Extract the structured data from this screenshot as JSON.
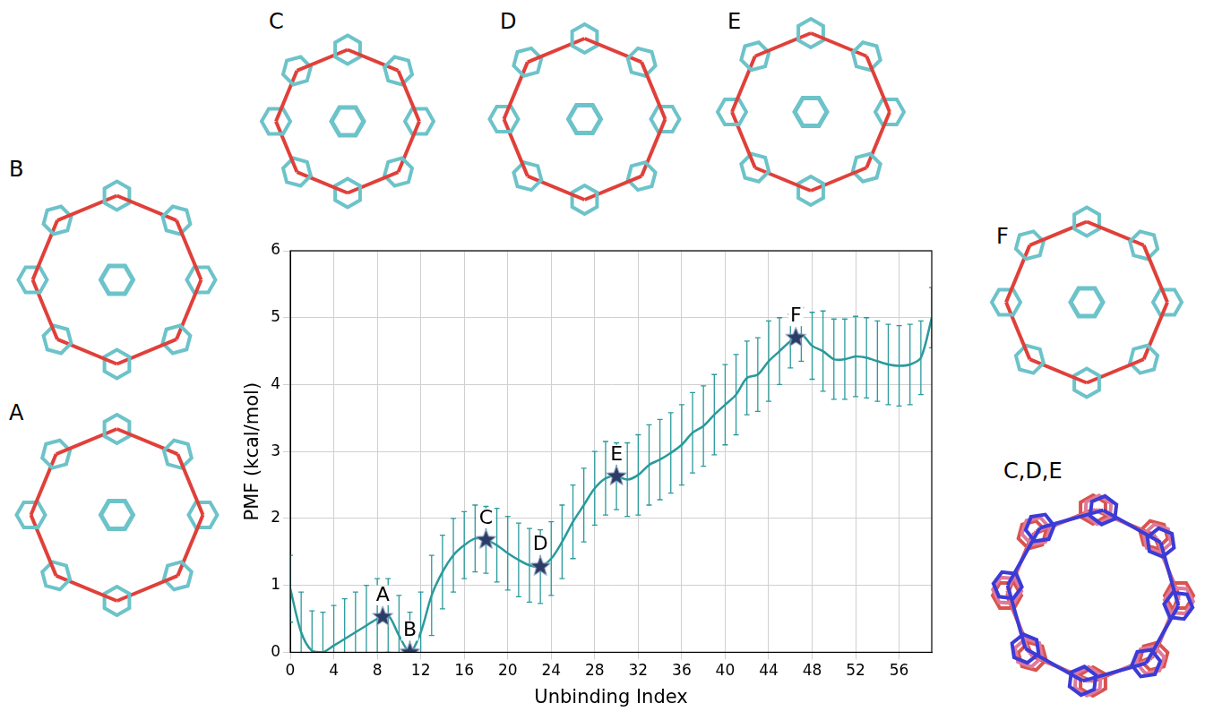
{
  "chart_data": {
    "type": "line",
    "x_label": "Unbinding Index",
    "y_label": "PMF (kcal/mol)",
    "color": "#2a9a9c",
    "x": [
      0,
      1,
      2,
      3,
      4,
      5,
      6,
      7,
      8,
      9,
      10,
      11,
      12,
      13,
      14,
      15,
      16,
      17,
      18,
      19,
      20,
      21,
      22,
      23,
      24,
      25,
      26,
      27,
      28,
      29,
      30,
      31,
      32,
      33,
      34,
      35,
      36,
      37,
      38,
      39,
      40,
      41,
      42,
      43,
      44,
      45,
      46,
      47,
      48,
      49,
      50,
      51,
      52,
      53,
      54,
      55,
      56,
      57,
      58,
      59
    ],
    "values": [
      0.95,
      0.3,
      0.02,
      0.0,
      0.1,
      0.2,
      0.3,
      0.4,
      0.5,
      0.55,
      0.25,
      0.0,
      0.3,
      0.85,
      1.2,
      1.45,
      1.6,
      1.7,
      1.68,
      1.6,
      1.48,
      1.38,
      1.3,
      1.28,
      1.4,
      1.65,
      1.95,
      2.2,
      2.45,
      2.6,
      2.63,
      2.58,
      2.65,
      2.8,
      2.88,
      2.98,
      3.1,
      3.28,
      3.38,
      3.55,
      3.7,
      3.85,
      4.1,
      4.15,
      4.35,
      4.5,
      4.65,
      4.75,
      4.58,
      4.5,
      4.38,
      4.38,
      4.42,
      4.4,
      4.35,
      4.3,
      4.28,
      4.3,
      4.4,
      5.0
    ],
    "errors": [
      0.5,
      0.6,
      0.6,
      0.6,
      0.6,
      0.6,
      0.6,
      0.6,
      0.6,
      0.55,
      0.6,
      0.6,
      0.6,
      0.6,
      0.55,
      0.55,
      0.5,
      0.5,
      0.5,
      0.55,
      0.55,
      0.55,
      0.55,
      0.55,
      0.55,
      0.55,
      0.55,
      0.55,
      0.55,
      0.55,
      0.5,
      0.55,
      0.6,
      0.6,
      0.6,
      0.6,
      0.6,
      0.6,
      0.6,
      0.6,
      0.6,
      0.6,
      0.55,
      0.55,
      0.6,
      0.5,
      0.4,
      0.4,
      0.5,
      0.6,
      0.6,
      0.6,
      0.6,
      0.6,
      0.6,
      0.6,
      0.6,
      0.6,
      0.55,
      0.45
    ],
    "markers": [
      {
        "label": "A",
        "x": 8.5,
        "y": 0.53
      },
      {
        "label": "B",
        "x": 11,
        "y": 0.0
      },
      {
        "label": "C",
        "x": 18,
        "y": 1.68
      },
      {
        "label": "D",
        "x": 23,
        "y": 1.28
      },
      {
        "label": "E",
        "x": 30,
        "y": 2.63
      },
      {
        "label": "F",
        "x": 46.5,
        "y": 4.7
      }
    ],
    "marker": "star",
    "marker_color": "#2b3d66",
    "xlim": [
      0,
      59
    ],
    "xticks": [
      0,
      4,
      8,
      12,
      16,
      20,
      24,
      28,
      32,
      36,
      40,
      44,
      48,
      52,
      56
    ],
    "ylim": [
      0,
      6
    ],
    "yticks": [
      0,
      1,
      2,
      3,
      4,
      5,
      6
    ],
    "grid": true
  },
  "panels": [
    "A",
    "B",
    "C",
    "D",
    "E",
    "F",
    "C,D,E"
  ]
}
